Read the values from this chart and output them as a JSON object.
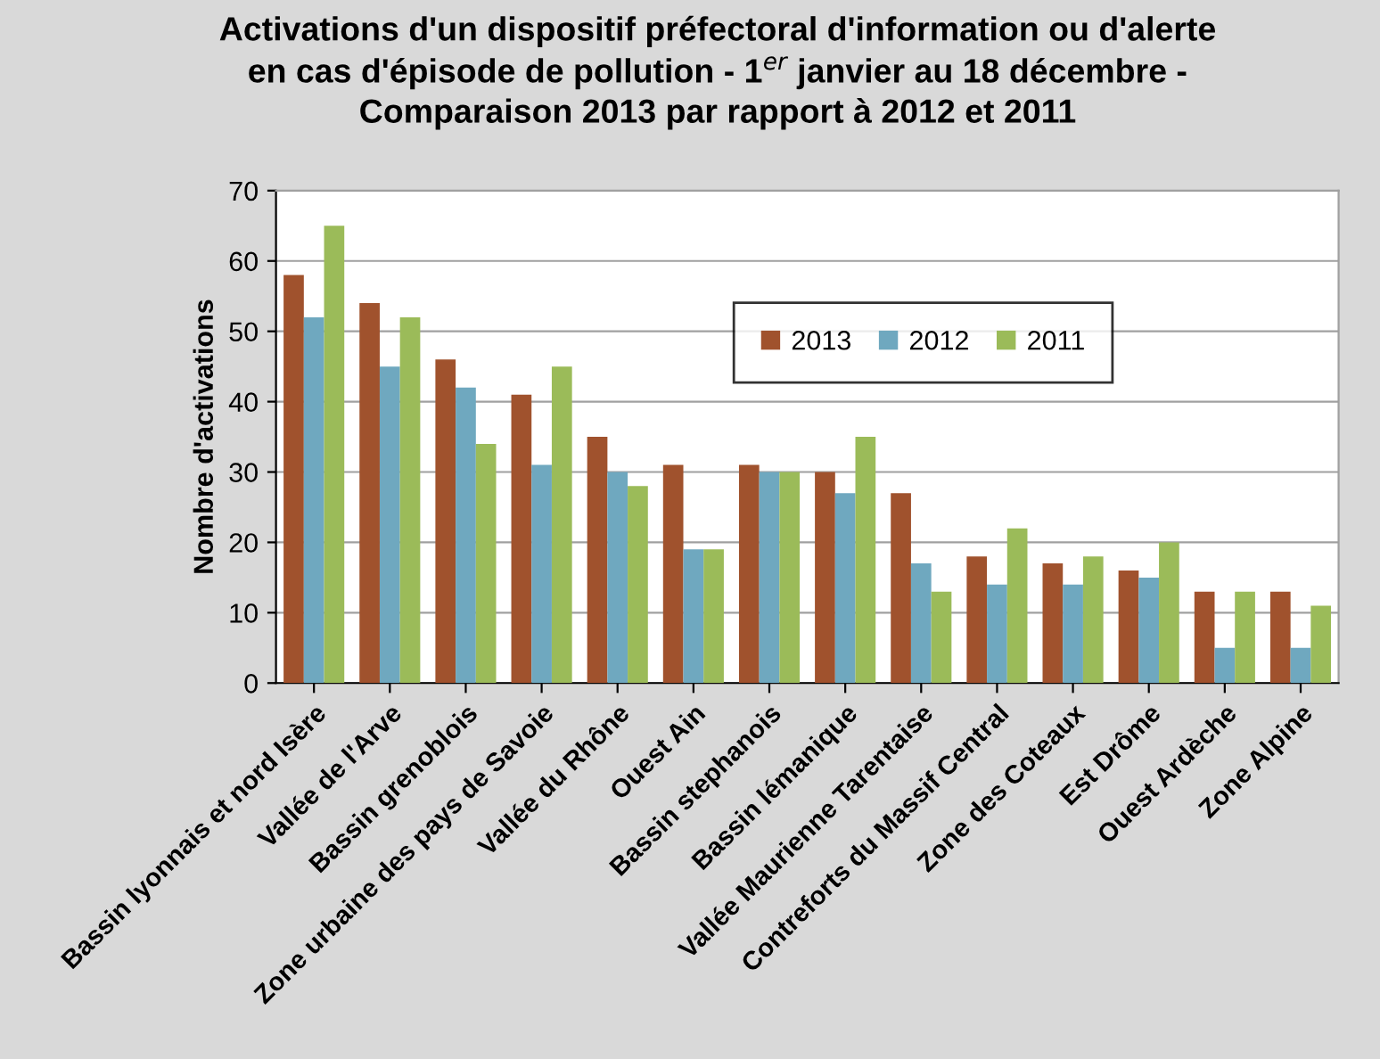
{
  "chart_data": {
    "type": "bar",
    "title": "Activations d'un dispositif préfectoral d'information ou d'alerte\nen cas d'épisode de pollution - 1$^{er}$ janvier au 18 décembre -\nComparaison 2013 par rapport à 2012 et 2011",
    "ylabel": "Nombre d'activations",
    "categories": [
      "Bassin lyonnais et nord Isère",
      "Vallée de l'Arve",
      "Bassin grenoblois",
      "Zone urbaine des pays de Savoie",
      "Vallée du Rhône",
      "Ouest Ain",
      "Bassin stephanois",
      "Bassin lémanique",
      "Vallée Maurienne Tarentaise",
      "Contreforts du Massif Central",
      "Zone des Coteaux",
      "Est Drôme",
      "Ouest Ardèche",
      "Zone Alpine"
    ],
    "series": [
      {
        "name": "2013",
        "color": "#a0522d",
        "values": [
          58,
          54,
          46,
          41,
          35,
          31,
          31,
          30,
          27,
          18,
          17,
          16,
          13,
          13
        ]
      },
      {
        "name": "2012",
        "color": "#6fa8bf",
        "values": [
          52,
          45,
          42,
          31,
          30,
          19,
          30,
          27,
          17,
          14,
          14,
          15,
          5,
          5
        ]
      },
      {
        "name": "2011",
        "color": "#9bbb59",
        "values": [
          65,
          52,
          34,
          45,
          28,
          19,
          30,
          35,
          13,
          22,
          18,
          20,
          13,
          11
        ]
      }
    ],
    "ylim": [
      0,
      70
    ],
    "yticks": [
      0,
      10,
      20,
      30,
      40,
      50,
      60,
      70
    ],
    "grid": "y",
    "legend": "top right"
  }
}
